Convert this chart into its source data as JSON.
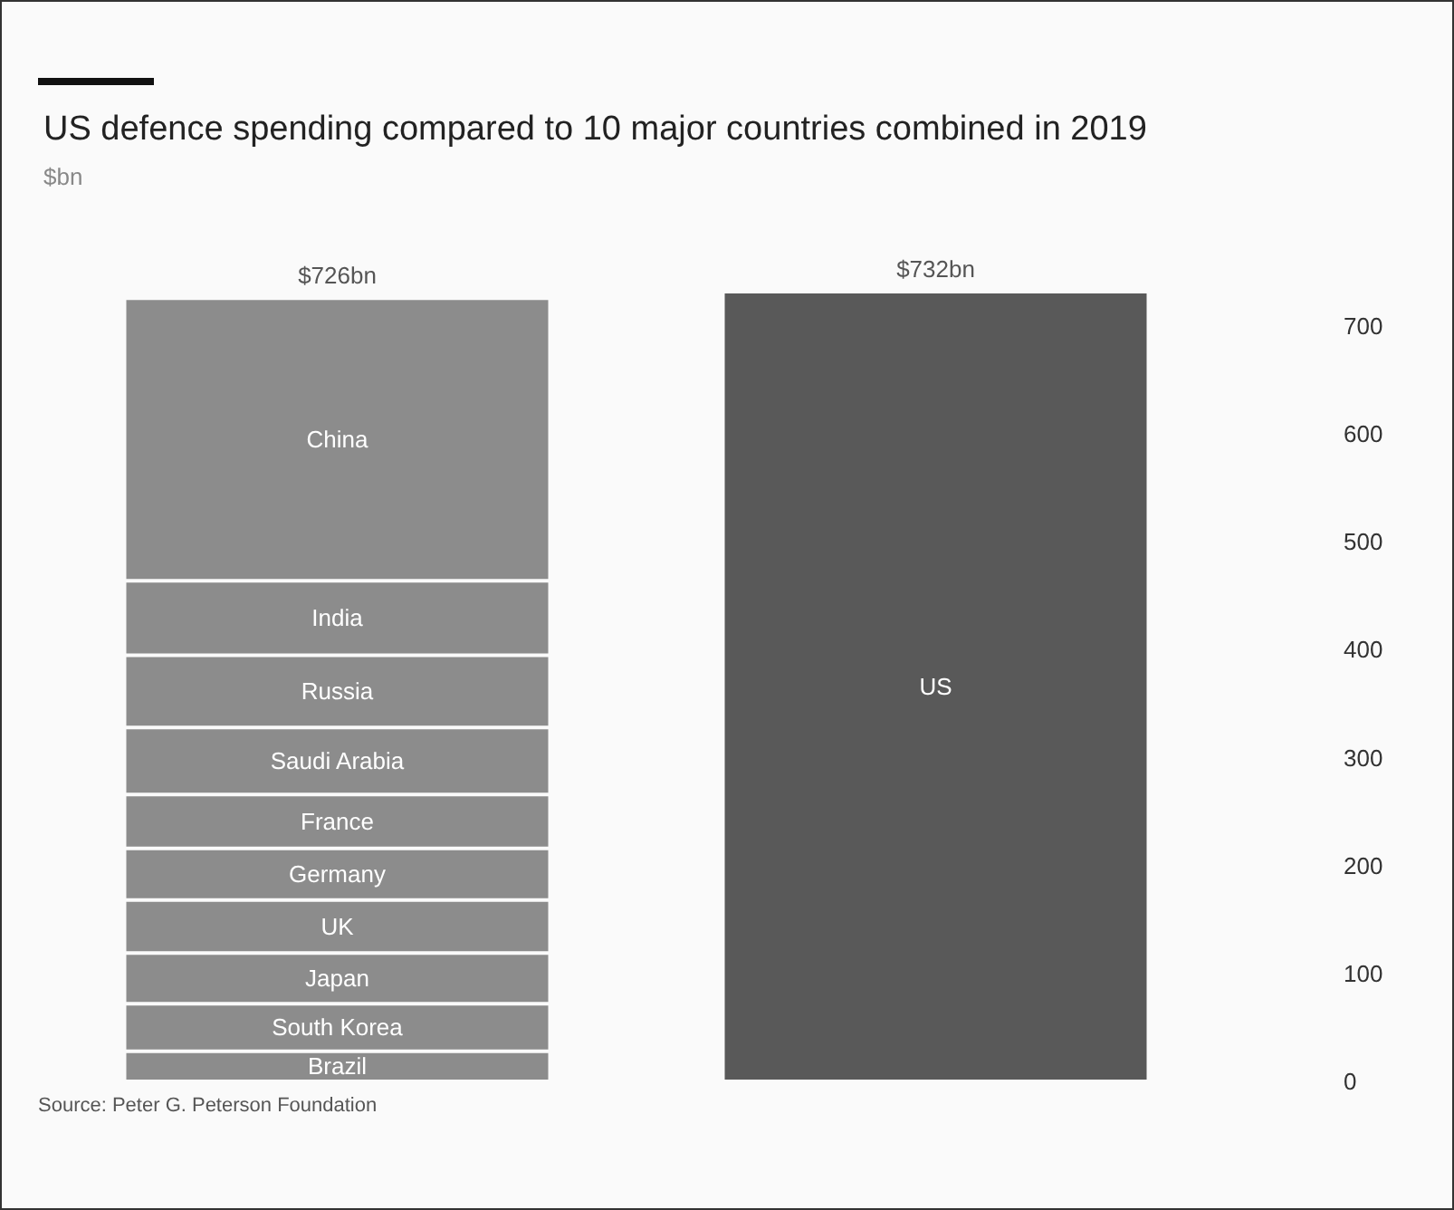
{
  "chart_data": {
    "type": "bar",
    "title": "US defence spending compared to 10 major countries combined in 2019",
    "subtitle": "$bn",
    "categories": [
      null,
      null
    ],
    "stacked": true,
    "series": [
      {
        "name": "Brazil",
        "color": "#8c8c8c",
        "values": [
          28,
          null
        ]
      },
      {
        "name": "South Korea",
        "color": "#8c8c8c",
        "values": [
          44,
          null
        ]
      },
      {
        "name": "Japan",
        "color": "#8c8c8c",
        "values": [
          47,
          null
        ]
      },
      {
        "name": "UK",
        "color": "#8c8c8c",
        "values": [
          49,
          null
        ]
      },
      {
        "name": "Germany",
        "color": "#8c8c8c",
        "values": [
          48,
          null
        ]
      },
      {
        "name": "France",
        "color": "#8c8c8c",
        "values": [
          50,
          null
        ]
      },
      {
        "name": "Saudi Arabia",
        "color": "#8c8c8c",
        "values": [
          62,
          null
        ]
      },
      {
        "name": "Russia",
        "color": "#8c8c8c",
        "values": [
          67,
          null
        ]
      },
      {
        "name": "India",
        "color": "#8c8c8c",
        "values": [
          69,
          null
        ]
      },
      {
        "name": "China",
        "color": "#8c8c8c",
        "values": [
          262,
          null
        ]
      },
      {
        "name": "US",
        "color": "#595959",
        "values": [
          null,
          732
        ]
      }
    ],
    "totals": [
      "$726bn",
      "$732bn"
    ],
    "ylim": [
      0,
      732
    ],
    "yticks": [
      0,
      100,
      200,
      300,
      400,
      500,
      600,
      700
    ],
    "grid": false,
    "legend": false,
    "annotations": [
      "Source: Peter G. Peterson Foundation"
    ]
  }
}
